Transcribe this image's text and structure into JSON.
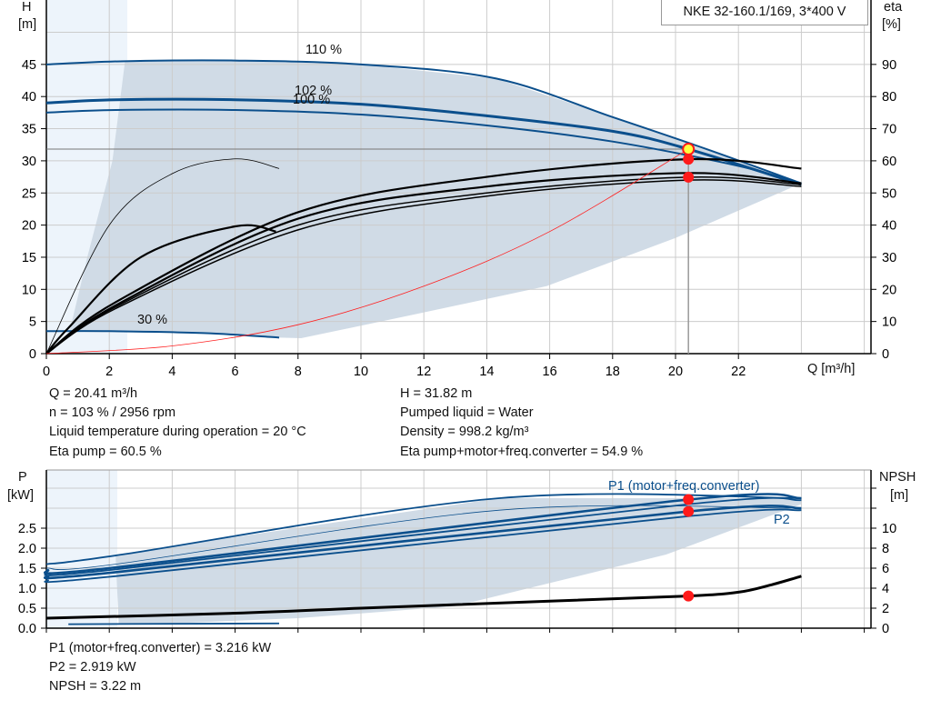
{
  "chart_data": [
    {
      "type": "line",
      "title": "NKE 32-160.1/169, 3*400 V",
      "xlabel": "Q [m³/h]",
      "ylabel": "H [m]",
      "ylabel_right": "eta [%]",
      "xlim": [
        0,
        26
      ],
      "ylim": [
        0,
        50
      ],
      "ylim_right": [
        0,
        100
      ],
      "xticks": [
        "0",
        "2",
        "4",
        "6",
        "8",
        "10",
        "12",
        "14",
        "16",
        "18",
        "20",
        "22"
      ],
      "yticks": [
        "0",
        "5",
        "10",
        "15",
        "20",
        "25",
        "30",
        "35",
        "40",
        "45"
      ],
      "yticks_right": [
        "0",
        "10",
        "20",
        "30",
        "40",
        "50",
        "60",
        "70",
        "80",
        "90"
      ],
      "grid": true,
      "series": [
        {
          "name": "110 %",
          "kind": "H",
          "x": [
            0,
            2.5,
            6,
            10,
            14.3,
            18,
            21,
            24
          ],
          "y": [
            45,
            45.5,
            45.6,
            45,
            42.8,
            36.8,
            31.8,
            26.5
          ]
        },
        {
          "name": "102 %",
          "kind": "H",
          "x": [
            0,
            2.2,
            6,
            10,
            14,
            18,
            20.41,
            24
          ],
          "y": [
            39,
            39.5,
            39.5,
            38.8,
            37,
            34.6,
            31.82,
            26.3
          ]
        },
        {
          "name": "100 %",
          "kind": "H",
          "x": [
            0,
            2.2,
            6,
            10,
            14,
            18,
            22,
            24
          ],
          "y": [
            37.5,
            37.9,
            37.9,
            37.2,
            35.5,
            33,
            29.2,
            26.4
          ]
        },
        {
          "name": "30 %",
          "kind": "H",
          "x": [
            0,
            2,
            5,
            7.4
          ],
          "y": [
            3.5,
            3.5,
            3.2,
            2.5
          ]
        },
        {
          "kind": "eta",
          "x": [
            0,
            2,
            4,
            6,
            7.4
          ],
          "y": [
            0,
            40,
            56,
            60.6,
            57.6
          ]
        },
        {
          "kind": "eta",
          "x": [
            0,
            0.7,
            3,
            6,
            7.3
          ],
          "y": [
            0,
            8,
            30,
            39.6,
            38
          ]
        },
        {
          "kind": "eta",
          "x": [
            0,
            2.2,
            8,
            14,
            20.41,
            24
          ],
          "y": [
            0,
            16,
            44,
            55,
            60.5,
            57.6
          ]
        },
        {
          "kind": "eta",
          "x": [
            0,
            2.2,
            8,
            14,
            20.41,
            24
          ],
          "y": [
            0,
            15,
            42,
            52,
            56.2,
            53
          ]
        },
        {
          "kind": "eta",
          "x": [
            0,
            2.2,
            8,
            14,
            20.41,
            24
          ],
          "y": [
            0,
            14.5,
            40,
            50,
            54.9,
            52.6
          ]
        },
        {
          "kind": "eta",
          "x": [
            0,
            2.2,
            8,
            14,
            20.41,
            24
          ],
          "y": [
            0,
            14,
            38.5,
            49,
            54,
            52
          ]
        },
        {
          "kind": "system",
          "x": [
            0,
            4,
            8,
            12,
            16,
            20.41
          ],
          "y": [
            0,
            1.2,
            4.5,
            10.5,
            19,
            31.82
          ]
        }
      ],
      "range_upper": {
        "x": [
          2.5,
          6,
          10,
          14.3,
          18,
          21,
          24
        ],
        "y": [
          45.5,
          45.6,
          45,
          42.8,
          36.8,
          31.8,
          26.5
        ]
      },
      "range_lower": {
        "x": [
          24,
          20,
          15.9,
          11.8,
          8.1,
          7.4,
          5,
          2,
          0.75,
          1.3,
          2.1,
          2.5
        ],
        "y": [
          26.5,
          18,
          10.5,
          6.2,
          2.4,
          2.5,
          3.2,
          3.5,
          3.7,
          15,
          30,
          45.5
        ]
      },
      "operating_point": {
        "Q": 20.41,
        "H": 31.82,
        "eta_pump": 60.5,
        "eta_total": 54.9
      },
      "colors": {
        "curve": "#0b4f8c",
        "range": "#d0dbe6",
        "range_light": "#edf4fb",
        "system": "#ff2020",
        "point": "#ff1a1a",
        "duty": "#ffff40"
      }
    },
    {
      "type": "line",
      "xlabel": "",
      "ylabel": "P [kW]",
      "ylabel_right": "NPSH [m]",
      "xlim": [
        0,
        26
      ],
      "ylim": [
        0,
        4
      ],
      "ylim_right": [
        0,
        16
      ],
      "yticks": [
        "0.0",
        "0.5",
        "1.0",
        "1.5",
        "2.0",
        "2.5"
      ],
      "yticks_right": [
        "0",
        "2",
        "4",
        "6",
        "8",
        "10"
      ],
      "grid": true,
      "series": [
        {
          "kind": "P",
          "x": [
            0,
            2.4,
            14.4,
            24
          ],
          "y": [
            1.6,
            1.84,
            3.25,
            3.25
          ]
        },
        {
          "kind": "P",
          "x": [
            0,
            2.2,
            20.41,
            24
          ],
          "y": [
            1.45,
            1.52,
            3.216,
            3.25
          ]
        },
        {
          "kind": "P",
          "x": [
            0,
            2.2,
            20.41,
            24
          ],
          "y": [
            1.38,
            1.47,
            3.1,
            3.2
          ]
        },
        {
          "kind": "P",
          "x": [
            0,
            2.2,
            20.41,
            24
          ],
          "y": [
            1.3,
            1.4,
            2.919,
            3.0
          ]
        },
        {
          "kind": "P",
          "x": [
            0,
            2.2,
            20.41,
            24
          ],
          "y": [
            1.2,
            1.3,
            2.8,
            2.95
          ]
        },
        {
          "kind": "P",
          "x": [
            0,
            2.2,
            14.4,
            24
          ],
          "y": [
            1.5,
            1.6,
            2.95,
            3.0
          ]
        },
        {
          "kind": "P",
          "x": [
            0.7,
            7.4
          ],
          "y": [
            0.1,
            0.12
          ]
        },
        {
          "kind": "NPSH",
          "x": [
            0,
            6,
            10,
            16,
            20.41,
            22,
            23,
            24
          ],
          "y": [
            1.0,
            1.5,
            2.0,
            2.7,
            3.22,
            3.6,
            4.3,
            5.2
          ]
        }
      ],
      "range_upper": {
        "x": [
          2.2,
          14.4,
          24
        ],
        "y": [
          1.84,
          3.25,
          3.25
        ]
      },
      "range_lower": {
        "x": [
          24,
          19.7,
          13,
          8,
          4,
          2.3,
          2.2
        ],
        "y": [
          3.1,
          1.84,
          0.55,
          0.25,
          0.12,
          0.1,
          1.84
        ]
      },
      "labels": {
        "p1": "P1 (motor+freq.converter)",
        "p2": "P2"
      },
      "operating_point": {
        "Q": 20.41,
        "P1": 3.216,
        "P2": 2.919,
        "NPSH": 3.22
      }
    }
  ],
  "top_chart": {
    "title": "NKE 32-160.1/169, 3*400 V",
    "y_left_label": [
      "H",
      "[m]"
    ],
    "y_right_label": [
      "eta",
      "[%]"
    ],
    "x_label": "Q [m³/h]",
    "curve_labels": [
      "110 %",
      "102 %",
      "100 %",
      "30 %"
    ]
  },
  "bottom_chart": {
    "y_left_label": [
      "P",
      "[kW]"
    ],
    "y_right_label": [
      "NPSH",
      "[m]"
    ]
  },
  "results": {
    "left": [
      "Q = 20.41 m³/h",
      "n = 103 % / 2956 rpm",
      "Liquid temperature during operation = 20 °C",
      "Eta pump = 60.5 %"
    ],
    "right": [
      "H = 31.82 m",
      "Pumped liquid = Water",
      "Density = 998.2 kg/m³",
      "Eta pump+motor+freq.converter = 54.9 %"
    ],
    "bottom": [
      "P1 (motor+freq.converter) = 3.216 kW",
      "P2 = 2.919 kW",
      "NPSH = 3.22 m"
    ]
  }
}
